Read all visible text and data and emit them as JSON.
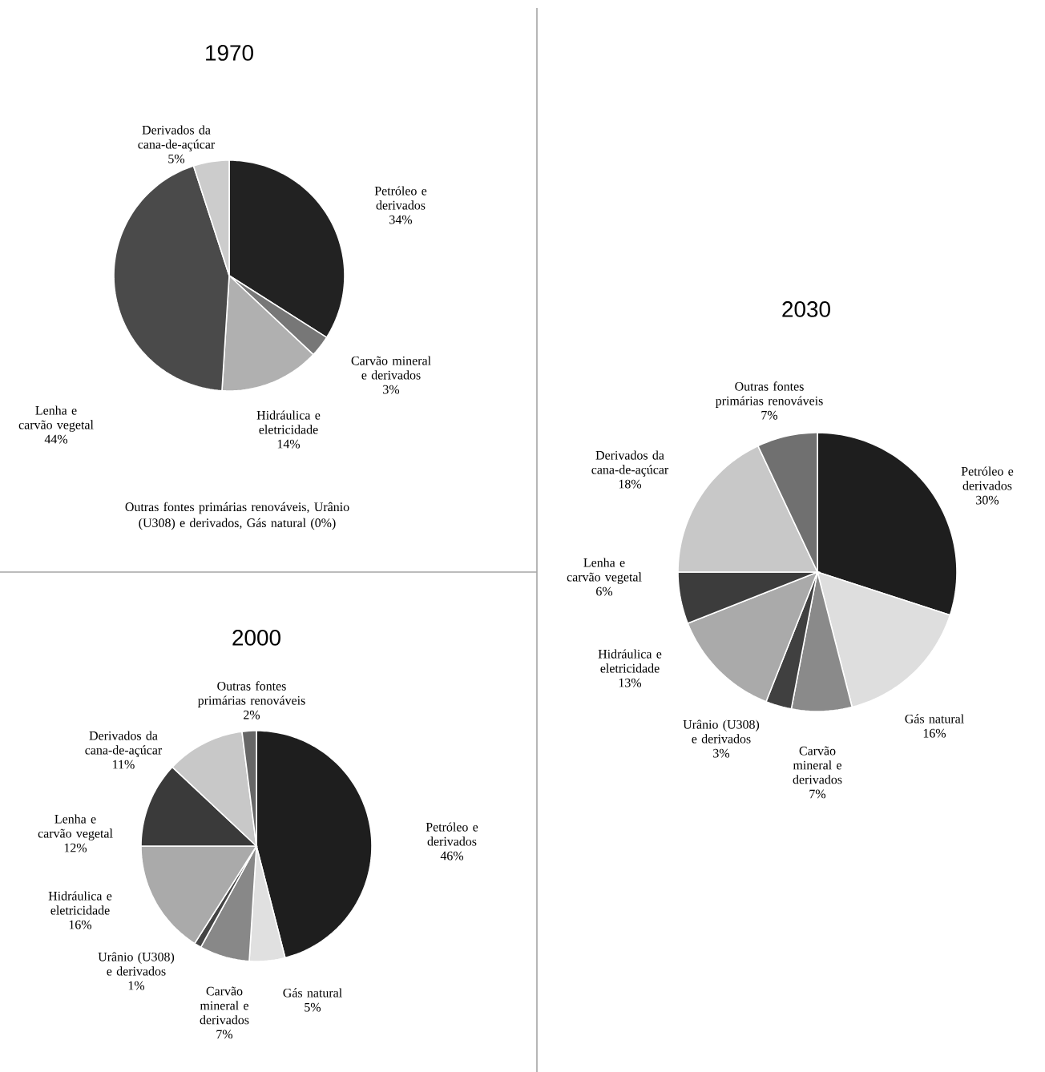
{
  "chart_data": [
    {
      "type": "pie",
      "title": "1970",
      "categories": [
        "Petróleo e derivados",
        "Carvão mineral e derivados",
        "Hidráulica e eletricidade",
        "Lenha e carvão vegetal",
        "Derivados da cana-de-açúcar"
      ],
      "values": [
        34,
        3,
        14,
        44,
        5
      ],
      "value_labels": [
        "34%",
        "3%",
        "14%",
        "44%",
        "5%"
      ],
      "colors": [
        "#222222",
        "#777777",
        "#b0b0b0",
        "#4a4a4a",
        "#cccccc"
      ],
      "annotations": [
        "Outras fontes primárias renováveis, Urânio (U308) e derivados, Gás natural (0%)"
      ]
    },
    {
      "type": "pie",
      "title": "2000",
      "categories": [
        "Petróleo e derivados",
        "Gás natural",
        "Carvão mineral e derivados",
        "Urânio (U308) e derivados",
        "Hidráulica e eletricidade",
        "Lenha e carvão vegetal",
        "Derivados da cana-de-açúcar",
        "Outras fontes primárias renováveis"
      ],
      "values": [
        46,
        5,
        7,
        1,
        16,
        12,
        11,
        2
      ],
      "value_labels": [
        "46%",
        "5%",
        "7%",
        "1%",
        "16%",
        "12%",
        "11%",
        "2%"
      ],
      "colors": [
        "#1e1e1e",
        "#e0e0e0",
        "#888888",
        "#444444",
        "#aaaaaa",
        "#3a3a3a",
        "#c8c8c8",
        "#666666"
      ]
    },
    {
      "type": "pie",
      "title": "2030",
      "categories": [
        "Petróleo e derivados",
        "Gás natural",
        "Carvão mineral e derivados",
        "Urânio (U308) e derivados",
        "Hidráulica e eletricidade",
        "Lenha e carvão vegetal",
        "Derivados da cana-de-açúcar",
        "Outras fontes primárias renováveis"
      ],
      "values": [
        30,
        16,
        7,
        3,
        13,
        6,
        18,
        7
      ],
      "value_labels": [
        "30%",
        "16%",
        "7%",
        "3%",
        "13%",
        "6%",
        "18%",
        "7%"
      ],
      "colors": [
        "#1e1e1e",
        "#dedede",
        "#8a8a8a",
        "#404040",
        "#aaaaaa",
        "#3c3c3c",
        "#c8c8c8",
        "#707070"
      ]
    }
  ]
}
